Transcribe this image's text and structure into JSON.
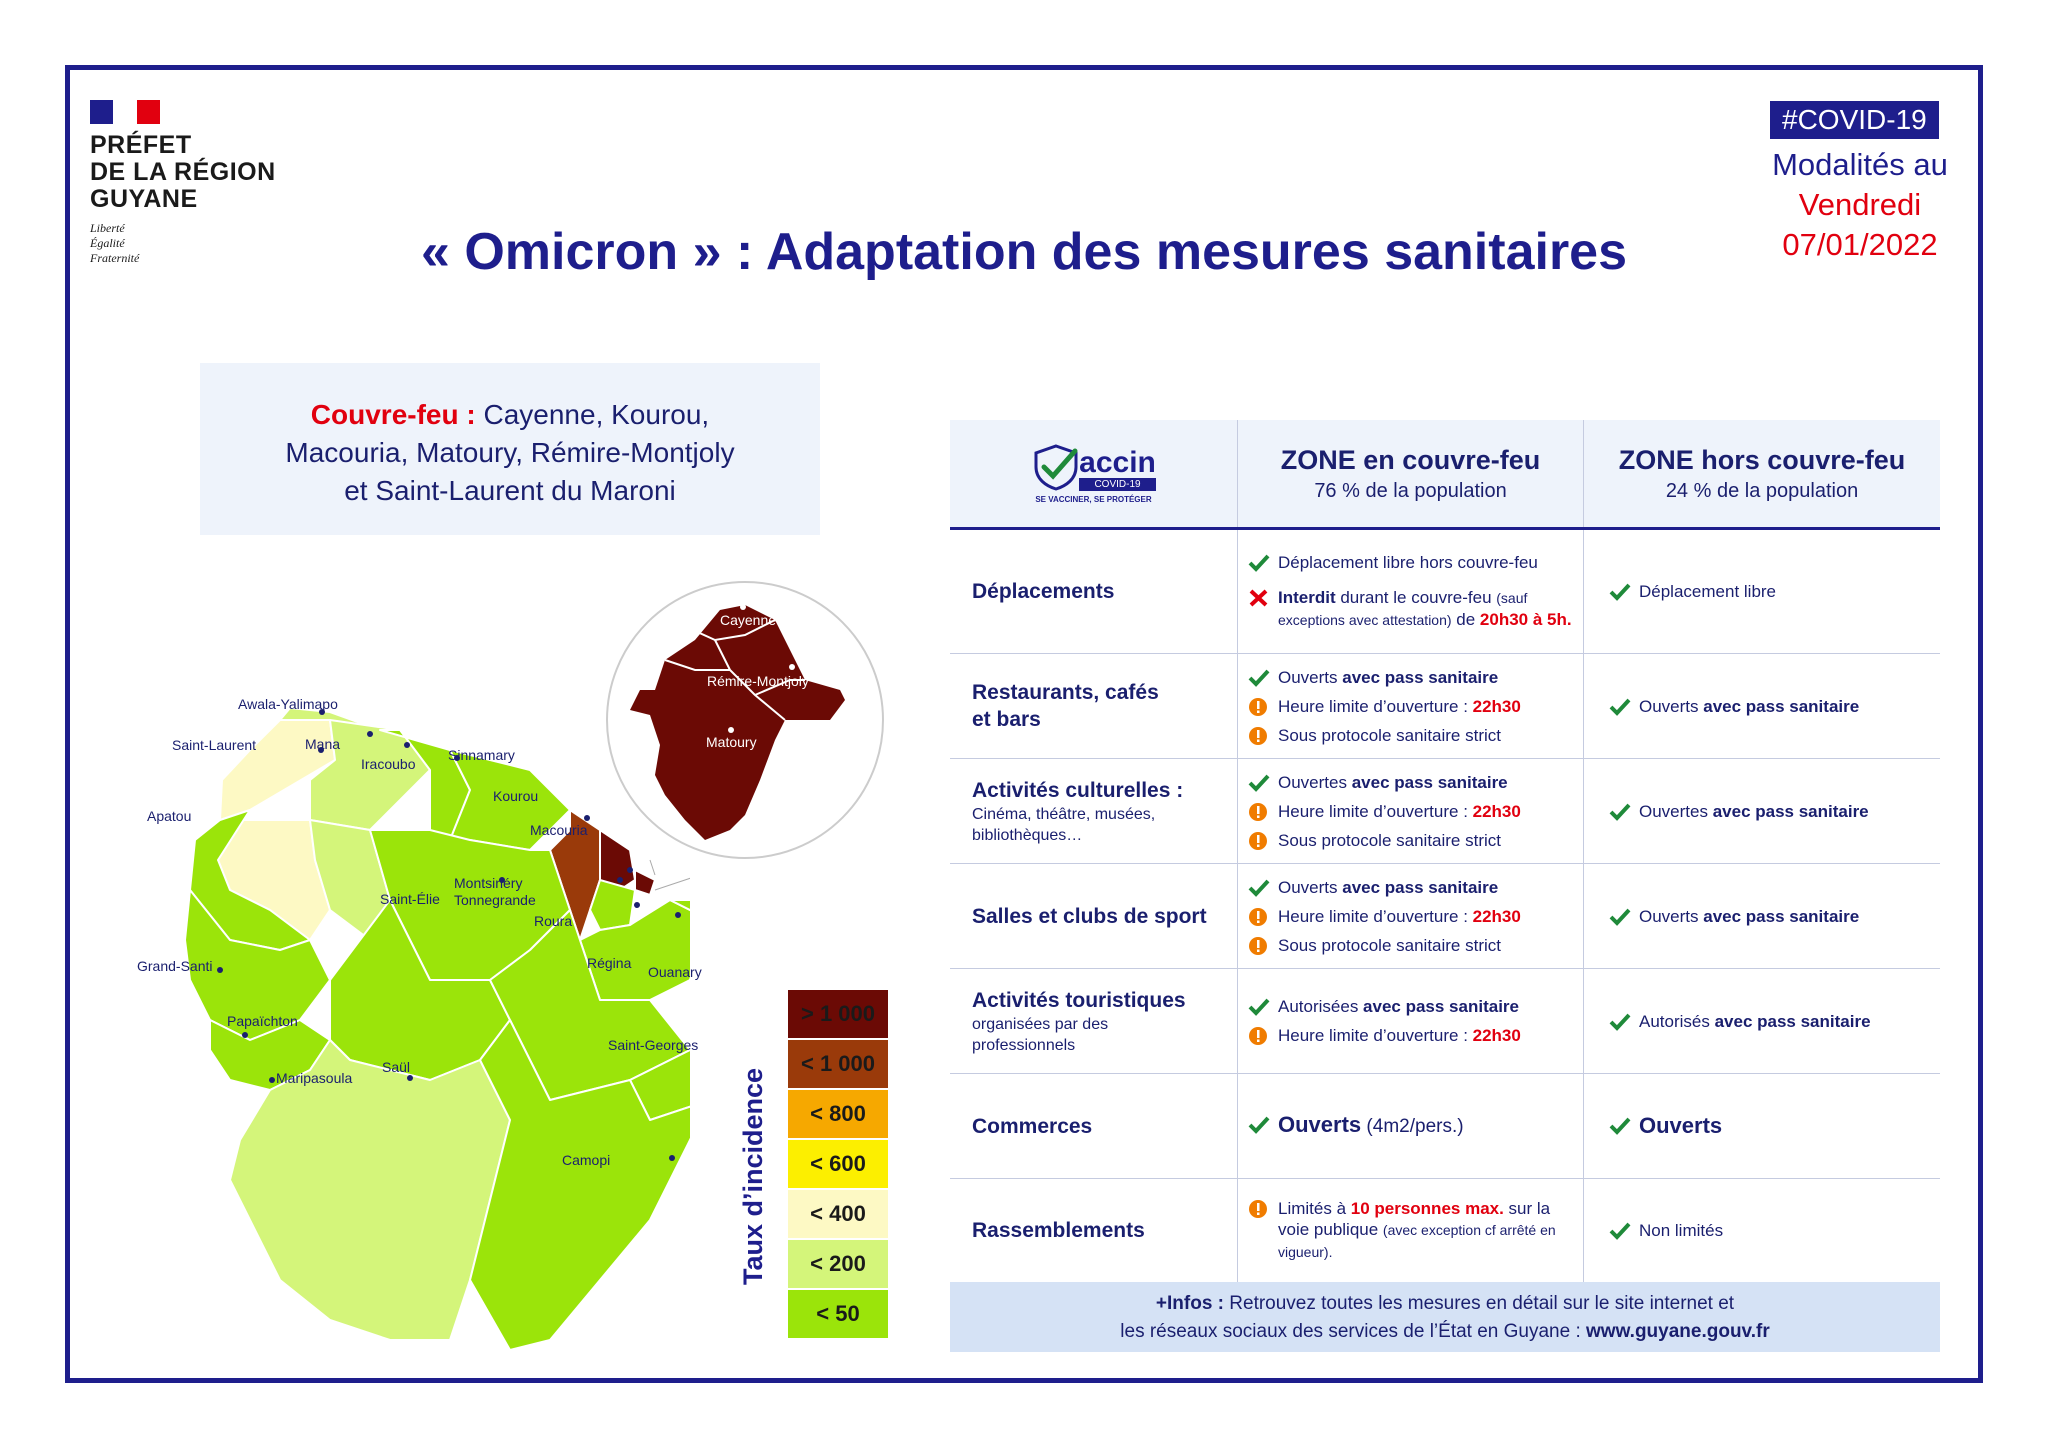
{
  "header": {
    "org_line1": "PRÉFET",
    "org_line2": "DE LA RÉGION",
    "org_line3": "GUYANE",
    "motto1": "Liberté",
    "motto2": "Égalité",
    "motto3": "Fraternité",
    "hashtag": "#COVID-19",
    "modal_line1": "Modalités au",
    "modal_line2": "Vendredi",
    "modal_line3": "07/01/2022",
    "title": "«  Omicron  » : Adaptation des mesures sanitaires"
  },
  "curfew": {
    "label": "Couvre-feu :",
    "line1": " Cayenne, Kourou,",
    "line2": "Macouria, Matoury, Rémire-Montjoly",
    "line3": "et Saint-Laurent du Maroni"
  },
  "map": {
    "communes": [
      "Awala-Yalimapo",
      "Saint-Laurent",
      "Mana",
      "Iracoubo",
      "Sinnamary",
      "Apatou",
      "Kourou",
      "Macouria",
      "Montsinéry",
      "Tonnegrande",
      "Saint-Élie",
      "Roura",
      "Régina",
      "Ouanary",
      "Grand-Santi",
      "Papaïchton",
      "Saint-Georges",
      "Saül",
      "Maripasoula",
      "Camopi"
    ],
    "inset": [
      "Cayenne",
      "Rémire-Montjoly",
      "Matoury"
    ]
  },
  "legend": {
    "title": "Taux d’incidence",
    "items": [
      {
        "label": "> 1 000",
        "color": "#6b0a05"
      },
      {
        "label": "< 1 000",
        "color": "#9a3a0a"
      },
      {
        "label": "< 800",
        "color": "#f6a800"
      },
      {
        "label": "< 600",
        "color": "#fcef00"
      },
      {
        "label": "< 400",
        "color": "#fdf9c4"
      },
      {
        "label": "< 200",
        "color": "#d4f57a"
      },
      {
        "label": "< 50",
        "color": "#9be40a"
      }
    ]
  },
  "table": {
    "vaccin": {
      "word": "accin",
      "badge": "COVID-19",
      "tagline": "SE VACCINER, SE PROTÉGER"
    },
    "col2_title": "ZONE en couvre-feu",
    "col2_sub": "76 % de la population",
    "col3_title": "ZONE hors couvre-feu",
    "col3_sub": "24 % de la population",
    "rows": {
      "deplacements": {
        "title": "Déplacements",
        "c2_1": "Déplacement libre hors couvre-feu",
        "c2_2a": "Interdit",
        "c2_2b": " durant le couvre-feu ",
        "c2_2c": "(sauf exceptions avec attestation)",
        "c2_2d": " de ",
        "c2_2e": "20h30 à 5h.",
        "c3": "Déplacement libre"
      },
      "restaurants": {
        "title": "Restaurants, cafés et bars",
        "c2_1a": "Ouverts ",
        "c2_1b": "avec pass sanitaire",
        "c2_2a": "Heure limite d’ouverture : ",
        "c2_2b": "22h30",
        "c2_3": "Sous protocole sanitaire strict",
        "c3a": "Ouverts ",
        "c3b": "avec pass sanitaire"
      },
      "culture": {
        "title": "Activités culturelles :",
        "sub": "Cinéma, théâtre, musées, bibliothèques…",
        "c2_1a": "Ouvertes ",
        "c2_1b": "avec pass sanitaire",
        "c2_2a": "Heure limite d’ouverture : ",
        "c2_2b": "22h30",
        "c2_3": "Sous protocole sanitaire strict",
        "c3a": "Ouvertes ",
        "c3b": "avec pass sanitaire"
      },
      "sport": {
        "title": "Salles et clubs de sport",
        "c2_1a": "Ouverts ",
        "c2_1b": "avec pass sanitaire",
        "c2_2a": "Heure limite d’ouverture : ",
        "c2_2b": "22h30",
        "c2_3": "Sous protocole sanitaire strict",
        "c3a": "Ouverts ",
        "c3b": "avec pass sanitaire"
      },
      "tourisme": {
        "title": "Activités touristiques",
        "sub": "organisées par des professionnels",
        "c2_1a": "Autorisées ",
        "c2_1b": "avec pass sanitaire",
        "c2_2a": "Heure limite d’ouverture : ",
        "c2_2b": "22h30",
        "c3a": "Autorisés ",
        "c3b": "avec pass sanitaire"
      },
      "commerces": {
        "title": "Commerces",
        "c2a": "Ouverts",
        "c2b": " (4m2/pers.)",
        "c3": "Ouverts"
      },
      "rassemblements": {
        "title": "Rassemblements",
        "c2a": "Limités à ",
        "c2b": "10 personnes max.",
        "c2c": " sur la voie publique ",
        "c2d": "(avec exception cf arrêté en vigueur).",
        "c3": "Non limités"
      }
    },
    "footer": {
      "a": "+Infos :",
      "b": " Retrouvez toutes les mesures en détail sur le site internet et",
      "c": "les réseaux sociaux des services de l’État en Guyane : ",
      "d": "www.guyane.gouv.fr"
    }
  },
  "colors": {
    "navy": "#1e1e8c",
    "red": "#e1000f",
    "check": "#1f8a3a",
    "warn": "#f07c00"
  }
}
